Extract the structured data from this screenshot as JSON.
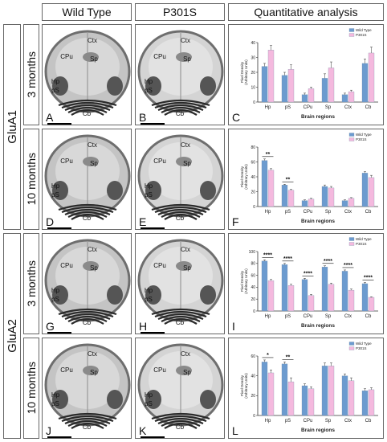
{
  "headers": {
    "col1": "Wild Type",
    "col2": "P301S",
    "col3": "Quantitative analysis"
  },
  "groups": [
    "GluA1",
    "GluA2"
  ],
  "ages": [
    "3 months",
    "10 months",
    "3 months",
    "10 months"
  ],
  "colors": {
    "wild_type": "#6c9bcf",
    "p301s": "#f4b9de",
    "error": "#333333"
  },
  "images": [
    {
      "row": 0,
      "wt_letter": "A",
      "p_letter": "B",
      "wt_labels": [
        "Ctx",
        "CPu",
        "Sp",
        "Hp",
        "pS",
        "Cb"
      ],
      "p_labels": [
        "Ctx",
        "CPu",
        "Sp",
        "Hp",
        "pS",
        "Cb"
      ]
    },
    {
      "row": 1,
      "wt_letter": "D",
      "p_letter": "E",
      "wt_labels": [
        "Ctx",
        "CPu",
        "Sp",
        "Hp",
        "pS",
        "Cb"
      ],
      "p_labels": [
        "Ctx",
        "CPu",
        "Sp",
        "Hp",
        "pS",
        "Cb"
      ]
    },
    {
      "row": 2,
      "wt_letter": "G",
      "p_letter": "H",
      "wt_labels": [
        "Ctx",
        "CPu",
        "Sp",
        "Hp",
        "pS",
        "Cb"
      ],
      "p_labels": [
        "Ctx",
        "CPu",
        "Sp",
        "Hp",
        "pS",
        "Cb"
      ]
    },
    {
      "row": 3,
      "wt_letter": "J",
      "p_letter": "K",
      "wt_labels": [
        "Ctx",
        "CPu",
        "Sp",
        "Hp",
        "pS",
        "Cb"
      ],
      "p_labels": [
        "Ctx",
        "CPu",
        "Sp",
        "Hp",
        "pS",
        "Cb"
      ]
    }
  ],
  "chart_data": [
    {
      "type": "bar",
      "letter": "C",
      "categories": [
        "Hp",
        "pS",
        "CPu",
        "Sp",
        "Ctx",
        "Cb"
      ],
      "xlabel": "Brain regions",
      "ylabel": "Pixel Density\n(Arbitrary Units)",
      "ylim": [
        0,
        40
      ],
      "yticks": [
        0,
        10,
        20,
        30,
        40
      ],
      "legend": [
        "Wild Type",
        "P301S"
      ],
      "legend_position": "top-right",
      "series": [
        {
          "name": "Wild Type",
          "values": [
            24,
            18,
            5,
            16,
            5,
            26
          ],
          "errors": [
            2,
            2,
            1,
            3,
            1,
            3
          ]
        },
        {
          "name": "P301S",
          "values": [
            35,
            22,
            9,
            23,
            7,
            33
          ],
          "errors": [
            3,
            3,
            1,
            4,
            1,
            4
          ]
        }
      ],
      "significance": []
    },
    {
      "type": "bar",
      "letter": "F",
      "categories": [
        "Hp",
        "pS",
        "CPu",
        "Sp",
        "Ctx",
        "Cb"
      ],
      "xlabel": "Brain regions",
      "ylabel": "Pixel Density\n(Arbitrary Units)",
      "ylim": [
        0,
        80
      ],
      "yticks": [
        0,
        20,
        40,
        60,
        80
      ],
      "legend": [
        "Wild Type",
        "P301S"
      ],
      "legend_position": "top-right",
      "series": [
        {
          "name": "Wild Type",
          "values": [
            62,
            29,
            8,
            27,
            8,
            45
          ],
          "errors": [
            2,
            1,
            1,
            2,
            1,
            2
          ]
        },
        {
          "name": "P301S",
          "values": [
            49,
            22,
            10,
            25,
            11,
            39
          ],
          "errors": [
            2,
            1,
            1,
            2,
            1,
            3
          ]
        }
      ],
      "significance": [
        {
          "index": 0,
          "label": "**"
        },
        {
          "index": 1,
          "label": "**"
        }
      ]
    },
    {
      "type": "bar",
      "letter": "I",
      "categories": [
        "Hp",
        "pS",
        "CPu",
        "Sp",
        "Ctx",
        "Cb"
      ],
      "xlabel": "Brain regions",
      "ylabel": "Pixel Density\n(Arbitrary Units)",
      "ylim": [
        0,
        100
      ],
      "yticks": [
        0,
        20,
        40,
        60,
        80,
        100
      ],
      "legend": [
        "Wild Type",
        "P301S"
      ],
      "legend_position": "top-right",
      "series": [
        {
          "name": "Wild Type",
          "values": [
            84,
            78,
            53,
            74,
            67,
            46
          ],
          "errors": [
            2,
            2,
            2,
            2,
            2,
            2
          ]
        },
        {
          "name": "P301S",
          "values": [
            51,
            43,
            26,
            45,
            35,
            23
          ],
          "errors": [
            2,
            2,
            2,
            2,
            2,
            1
          ]
        }
      ],
      "significance": [
        {
          "index": 0,
          "label": "****"
        },
        {
          "index": 1,
          "label": "****"
        },
        {
          "index": 2,
          "label": "****"
        },
        {
          "index": 3,
          "label": "****"
        },
        {
          "index": 4,
          "label": "****"
        },
        {
          "index": 5,
          "label": "****"
        }
      ]
    },
    {
      "type": "bar",
      "letter": "L",
      "categories": [
        "Hp",
        "pS",
        "CPu",
        "Sp",
        "Ctx",
        "Cb"
      ],
      "xlabel": "Brain regions",
      "ylabel": "Pixel Density\n(Arbitrary Units)",
      "ylim": [
        0,
        60
      ],
      "yticks": [
        0,
        20,
        40,
        60
      ],
      "legend": [
        "Wild Type",
        "P301S"
      ],
      "legend_position": "top-right",
      "series": [
        {
          "name": "Wild Type",
          "values": [
            54,
            52,
            30,
            50,
            40,
            25
          ],
          "errors": [
            2,
            2,
            2,
            3,
            2,
            2
          ]
        },
        {
          "name": "P301S",
          "values": [
            43,
            34,
            27,
            50,
            35,
            26
          ],
          "errors": [
            3,
            4,
            2,
            3,
            3,
            2
          ]
        }
      ],
      "significance": [
        {
          "index": 0,
          "label": "*"
        },
        {
          "index": 1,
          "label": "**"
        }
      ]
    }
  ]
}
